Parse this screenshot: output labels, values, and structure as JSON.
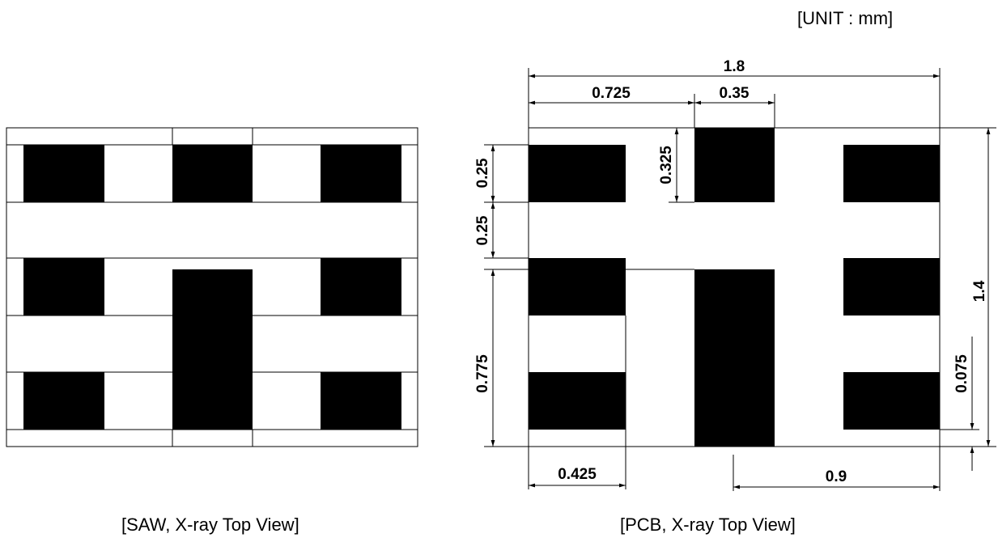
{
  "unit_label": "[UNIT : mm]",
  "captions": {
    "saw": "[SAW, X-ray Top View]",
    "pcb": "[PCB, X-ray Top View]"
  },
  "dimensions": {
    "total_width": "1.8",
    "offset_0725": "0.725",
    "center_pad_width": "0.35",
    "top_pad_height": "0.325",
    "pad_height": "0.25",
    "pad_gap": "0.25",
    "center_pad_gap": "0.775",
    "total_height": "1.4",
    "edge_gap": "0.075",
    "pad_width": "0.425",
    "right_span": "0.9"
  },
  "colors": {
    "pad": "#000000",
    "line": "#000000",
    "background": "#ffffff"
  }
}
